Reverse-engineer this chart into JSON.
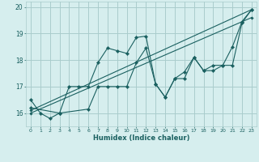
{
  "xlabel": "Humidex (Indice chaleur)",
  "xlim": [
    -0.5,
    23.5
  ],
  "ylim": [
    15.5,
    20.2
  ],
  "yticks": [
    16,
    17,
    18,
    19,
    20
  ],
  "xticks": [
    0,
    1,
    2,
    3,
    4,
    5,
    6,
    7,
    8,
    9,
    10,
    11,
    12,
    13,
    14,
    15,
    16,
    17,
    18,
    19,
    20,
    21,
    22,
    23
  ],
  "background_color": "#d6eeee",
  "grid_color": "#aacccc",
  "line_color": "#1a6060",
  "series": [
    {
      "x": [
        0,
        1,
        2,
        3,
        4,
        5,
        6,
        7,
        8,
        9,
        10,
        11,
        12,
        13,
        14,
        15,
        16,
        17,
        18,
        19,
        20,
        21,
        22,
        23
      ],
      "y": [
        16.5,
        16.0,
        15.8,
        16.0,
        17.0,
        17.0,
        17.0,
        17.9,
        18.45,
        18.35,
        18.25,
        18.85,
        18.9,
        17.1,
        16.6,
        17.3,
        17.55,
        18.1,
        17.6,
        17.8,
        17.8,
        18.5,
        19.45,
        19.9
      ]
    },
    {
      "x": [
        0,
        3,
        6,
        7,
        8,
        9,
        10,
        11,
        12,
        13,
        14,
        15,
        16,
        17,
        18,
        19,
        20,
        21,
        22,
        23
      ],
      "y": [
        16.2,
        16.0,
        16.15,
        17.0,
        17.0,
        17.0,
        17.0,
        17.9,
        18.45,
        17.1,
        16.6,
        17.3,
        17.3,
        18.1,
        17.6,
        17.6,
        17.8,
        17.8,
        19.4,
        19.9
      ]
    },
    {
      "x": [
        0,
        23
      ],
      "y": [
        16.1,
        19.9
      ]
    },
    {
      "x": [
        0,
        23
      ],
      "y": [
        16.0,
        19.6
      ]
    }
  ]
}
